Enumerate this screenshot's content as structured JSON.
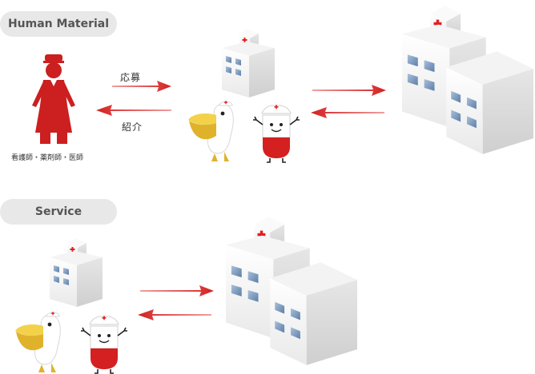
{
  "sections": {
    "human": {
      "title": "Human Material",
      "recruit_label": "応募",
      "introduce_label": "紹介",
      "nurse_caption": "看護師・薬剤師・医師"
    },
    "service": {
      "title": "Service"
    }
  },
  "colors": {
    "arrow": "#d42222",
    "nurse": "#cc1f1f",
    "pill_bg": "#e8e8e8",
    "building": "#f2f2f2",
    "window": "#8aa8c8",
    "cross": "#e02020"
  },
  "icons": [
    "nurse-icon",
    "hospital-small-icon",
    "hospital-large-icon",
    "pelican-mascot-icon",
    "pill-nurse-mascot-icon",
    "arrow-right-icon",
    "arrow-left-icon"
  ]
}
